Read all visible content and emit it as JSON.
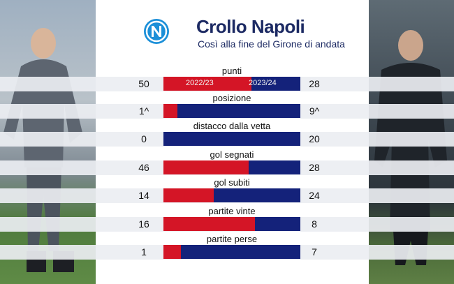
{
  "header": {
    "title": "Crollo Napoli",
    "subtitle": "Così alla fine del Girone di andata"
  },
  "legend": {
    "left": "2022/23",
    "right": "2023/24"
  },
  "colors": {
    "season_2022_23": "#d41526",
    "season_2023_24": "#14227a",
    "navy_text": "#1c2a63"
  },
  "chart_data": {
    "type": "bar",
    "series": [
      {
        "name": "2022/23",
        "values": [
          50,
          1,
          0,
          46,
          14,
          16,
          1
        ]
      },
      {
        "name": "2023/24",
        "values": [
          28,
          9,
          20,
          28,
          24,
          8,
          7
        ]
      }
    ],
    "categories": [
      "punti",
      "posizione",
      "distacco dalla vetta",
      "gol segnati",
      "gol subiti",
      "partite vinte",
      "partite perse"
    ],
    "title": "Crollo Napoli",
    "subtitle": "Così alla fine del Girone di andata",
    "xlabel": "",
    "ylabel": "",
    "stacked_share": true,
    "legend": "inside-first-bar"
  },
  "rows": [
    {
      "label": "punti",
      "left": "50",
      "right": "28"
    },
    {
      "label": "posizione",
      "left": "1^",
      "right": "9^"
    },
    {
      "label": "distacco dalla vetta",
      "left": "0",
      "right": "20"
    },
    {
      "label": "gol segnati",
      "left": "46",
      "right": "28"
    },
    {
      "label": "gol subiti",
      "left": "14",
      "right": "24"
    },
    {
      "label": "partite vinte",
      "left": "16",
      "right": "8"
    },
    {
      "label": "partite perse",
      "left": "1",
      "right": "7"
    }
  ]
}
